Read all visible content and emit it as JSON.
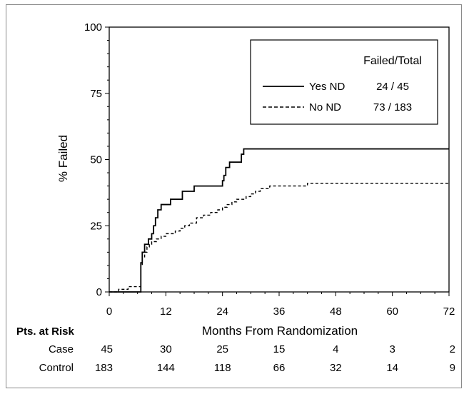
{
  "chart_data": {
    "type": "line",
    "title": "",
    "xlabel": "Months From Randomization",
    "ylabel": "% Failed",
    "xlim": [
      0,
      72
    ],
    "ylim": [
      0,
      100
    ],
    "x_ticks": [
      "0",
      "12",
      "24",
      "36",
      "48",
      "60",
      "72"
    ],
    "y_ticks": [
      "0",
      "25",
      "50",
      "75",
      "100"
    ],
    "grid": false,
    "legend": {
      "placement": "top-right",
      "header": "Failed/Total",
      "entries": [
        {
          "label": "Yes ND",
          "value": "24 / 45",
          "style": "solid"
        },
        {
          "label": "No ND",
          "value": "73 / 183",
          "style": "dashed"
        }
      ]
    },
    "series": [
      {
        "name": "Yes ND",
        "step_points": [
          [
            0,
            0
          ],
          [
            6.5,
            0
          ],
          [
            6.7,
            11
          ],
          [
            7,
            15
          ],
          [
            7.5,
            18
          ],
          [
            8.3,
            20
          ],
          [
            9,
            22
          ],
          [
            9.4,
            25
          ],
          [
            9.8,
            28
          ],
          [
            10.3,
            31
          ],
          [
            11,
            33
          ],
          [
            13,
            35
          ],
          [
            15.5,
            38
          ],
          [
            18,
            40
          ],
          [
            24,
            42
          ],
          [
            24.3,
            44
          ],
          [
            24.7,
            47
          ],
          [
            25.5,
            49
          ],
          [
            28,
            52
          ],
          [
            28.5,
            54
          ],
          [
            72,
            54
          ]
        ]
      },
      {
        "name": "No ND",
        "step_points": [
          [
            0,
            0
          ],
          [
            2,
            1
          ],
          [
            4,
            2
          ],
          [
            6.5,
            2
          ],
          [
            6.7,
            10
          ],
          [
            7,
            13
          ],
          [
            7.5,
            15
          ],
          [
            8,
            17
          ],
          [
            8.5,
            18
          ],
          [
            9,
            19
          ],
          [
            10,
            20
          ],
          [
            11,
            21
          ],
          [
            12,
            22
          ],
          [
            14,
            23
          ],
          [
            15,
            24
          ],
          [
            16,
            25
          ],
          [
            17,
            26
          ],
          [
            18.5,
            28
          ],
          [
            20,
            29
          ],
          [
            21.5,
            30
          ],
          [
            23,
            31
          ],
          [
            24,
            32
          ],
          [
            25,
            33
          ],
          [
            26,
            34
          ],
          [
            27,
            35
          ],
          [
            29,
            36
          ],
          [
            30,
            37
          ],
          [
            31,
            38
          ],
          [
            32,
            39
          ],
          [
            34,
            40
          ],
          [
            42,
            41
          ],
          [
            72,
            41
          ]
        ]
      }
    ],
    "risk_table": {
      "header": "Pts. at Risk",
      "times": [
        0,
        12,
        24,
        36,
        48,
        60,
        72
      ],
      "rows": [
        {
          "label": "Case",
          "values": [
            "45",
            "30",
            "25",
            "15",
            "4",
            "3",
            "2"
          ]
        },
        {
          "label": "Control",
          "values": [
            "183",
            "144",
            "118",
            "66",
            "32",
            "14",
            "9"
          ]
        }
      ]
    }
  }
}
